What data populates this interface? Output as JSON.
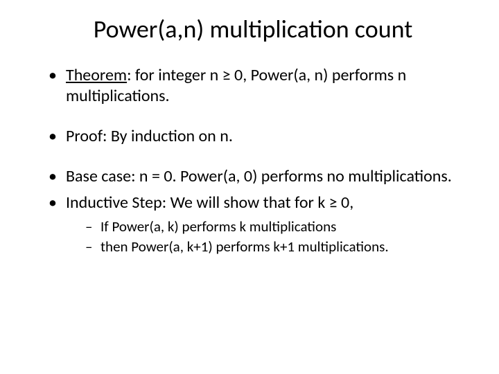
{
  "slide": {
    "title": "Power(a,n) multiplication count",
    "bullets": [
      {
        "prefix": "Theorem",
        "text": ": for integer n ≥ 0, Power(a, n) performs n multiplications."
      },
      {
        "text": "Proof: By induction on n."
      },
      {
        "text": "Base case: n = 0. Power(a, 0) performs no multiplications."
      },
      {
        "text": "Inductive Step: We will show that for k ≥ 0,",
        "subs": [
          "If Power(a, k) performs k multiplications",
          "then Power(a, k+1) performs k+1 multiplications."
        ]
      }
    ],
    "colors": {
      "background": "#ffffff",
      "text": "#000000"
    },
    "typography": {
      "title_fontsize": 36,
      "bullet_fontsize": 24,
      "sub_fontsize": 21,
      "font_family": "Calibri"
    }
  }
}
